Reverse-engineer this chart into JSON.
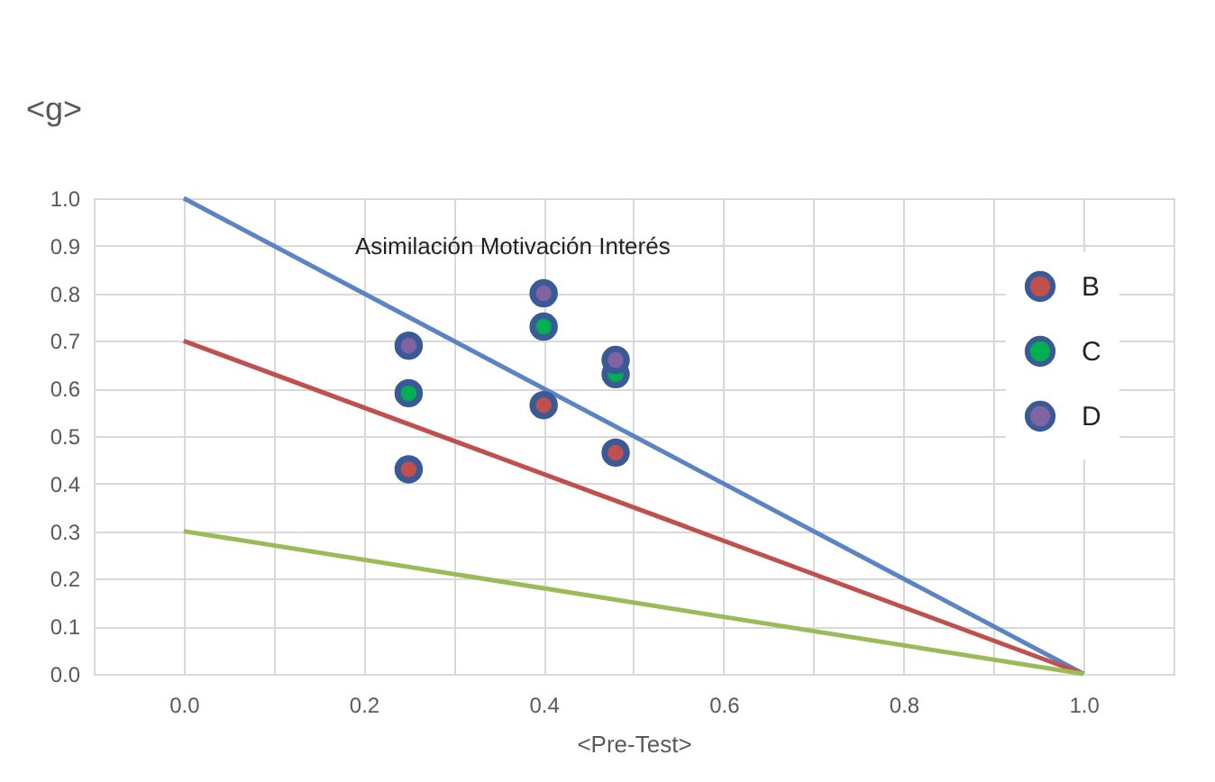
{
  "chart_data": {
    "type": "scatter",
    "ylabel": "<g>",
    "xlabel": "<Pre-Test>",
    "annotations": [
      "Asimilación Motivación Interés"
    ],
    "xlim": [
      -0.1,
      1.1
    ],
    "xticks": [
      {
        "value": -0.1,
        "label": null
      },
      "0.0",
      {
        "value": 0.1,
        "label": null
      },
      0.2,
      {
        "value": 0.3,
        "label": null
      },
      0.4,
      {
        "value": 0.5,
        "label": null
      },
      0.6,
      {
        "value": 0.7,
        "label": null
      },
      0.8,
      {
        "value": 0.9,
        "label": null
      },
      "1.0",
      {
        "value": 1.1,
        "label": null
      }
    ],
    "ylim": [
      0,
      1
    ],
    "yticks": [
      "0.0",
      0.1,
      0.2,
      0.3,
      0.4,
      0.5,
      0.6,
      0.7,
      0.8,
      0.9,
      "1.0"
    ],
    "grid": true,
    "legend": "top right",
    "marker": "circle",
    "series": [
      {
        "type": "line",
        "marker": "none",
        "color": "#5b84c4",
        "x": [
          0,
          1
        ],
        "values": [
          1,
          0
        ]
      },
      {
        "type": "line",
        "marker": "none",
        "color": "#c0504d",
        "x": [
          0,
          1
        ],
        "values": [
          0.7,
          0
        ]
      },
      {
        "type": "line",
        "marker": "none",
        "color": "#9bbb59",
        "x": [
          0,
          1
        ],
        "values": [
          0.3,
          0
        ]
      },
      {
        "name": "B",
        "color": "#c0504d",
        "x": [
          0.25,
          0.4,
          0.48
        ],
        "values": [
          0.43,
          0.565,
          0.465
        ]
      },
      {
        "name": "C",
        "color": "#00b050",
        "x": [
          0.25,
          0.4,
          0.48
        ],
        "values": [
          0.59,
          0.73,
          0.63
        ]
      },
      {
        "name": "D",
        "color": "#8064a2",
        "x": [
          0.25,
          0.4,
          0.48
        ],
        "values": [
          0.69,
          0.8,
          0.66
        ]
      }
    ]
  }
}
